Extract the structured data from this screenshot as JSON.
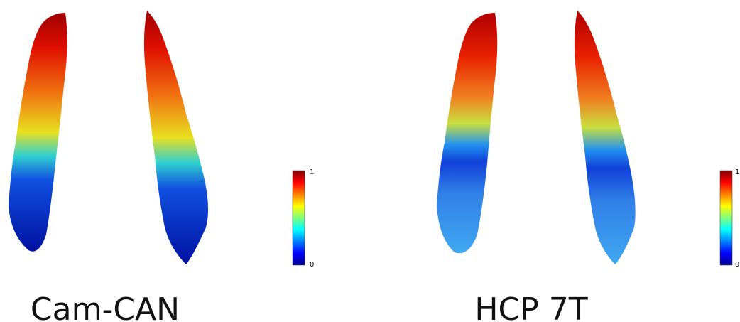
{
  "panels": [
    {
      "caption": "Cam-CAN",
      "colorbar": {
        "max": 1,
        "min": 0
      }
    },
    {
      "caption": "HCP 7T",
      "colorbar": {
        "max": 1,
        "min": 0
      }
    }
  ]
}
